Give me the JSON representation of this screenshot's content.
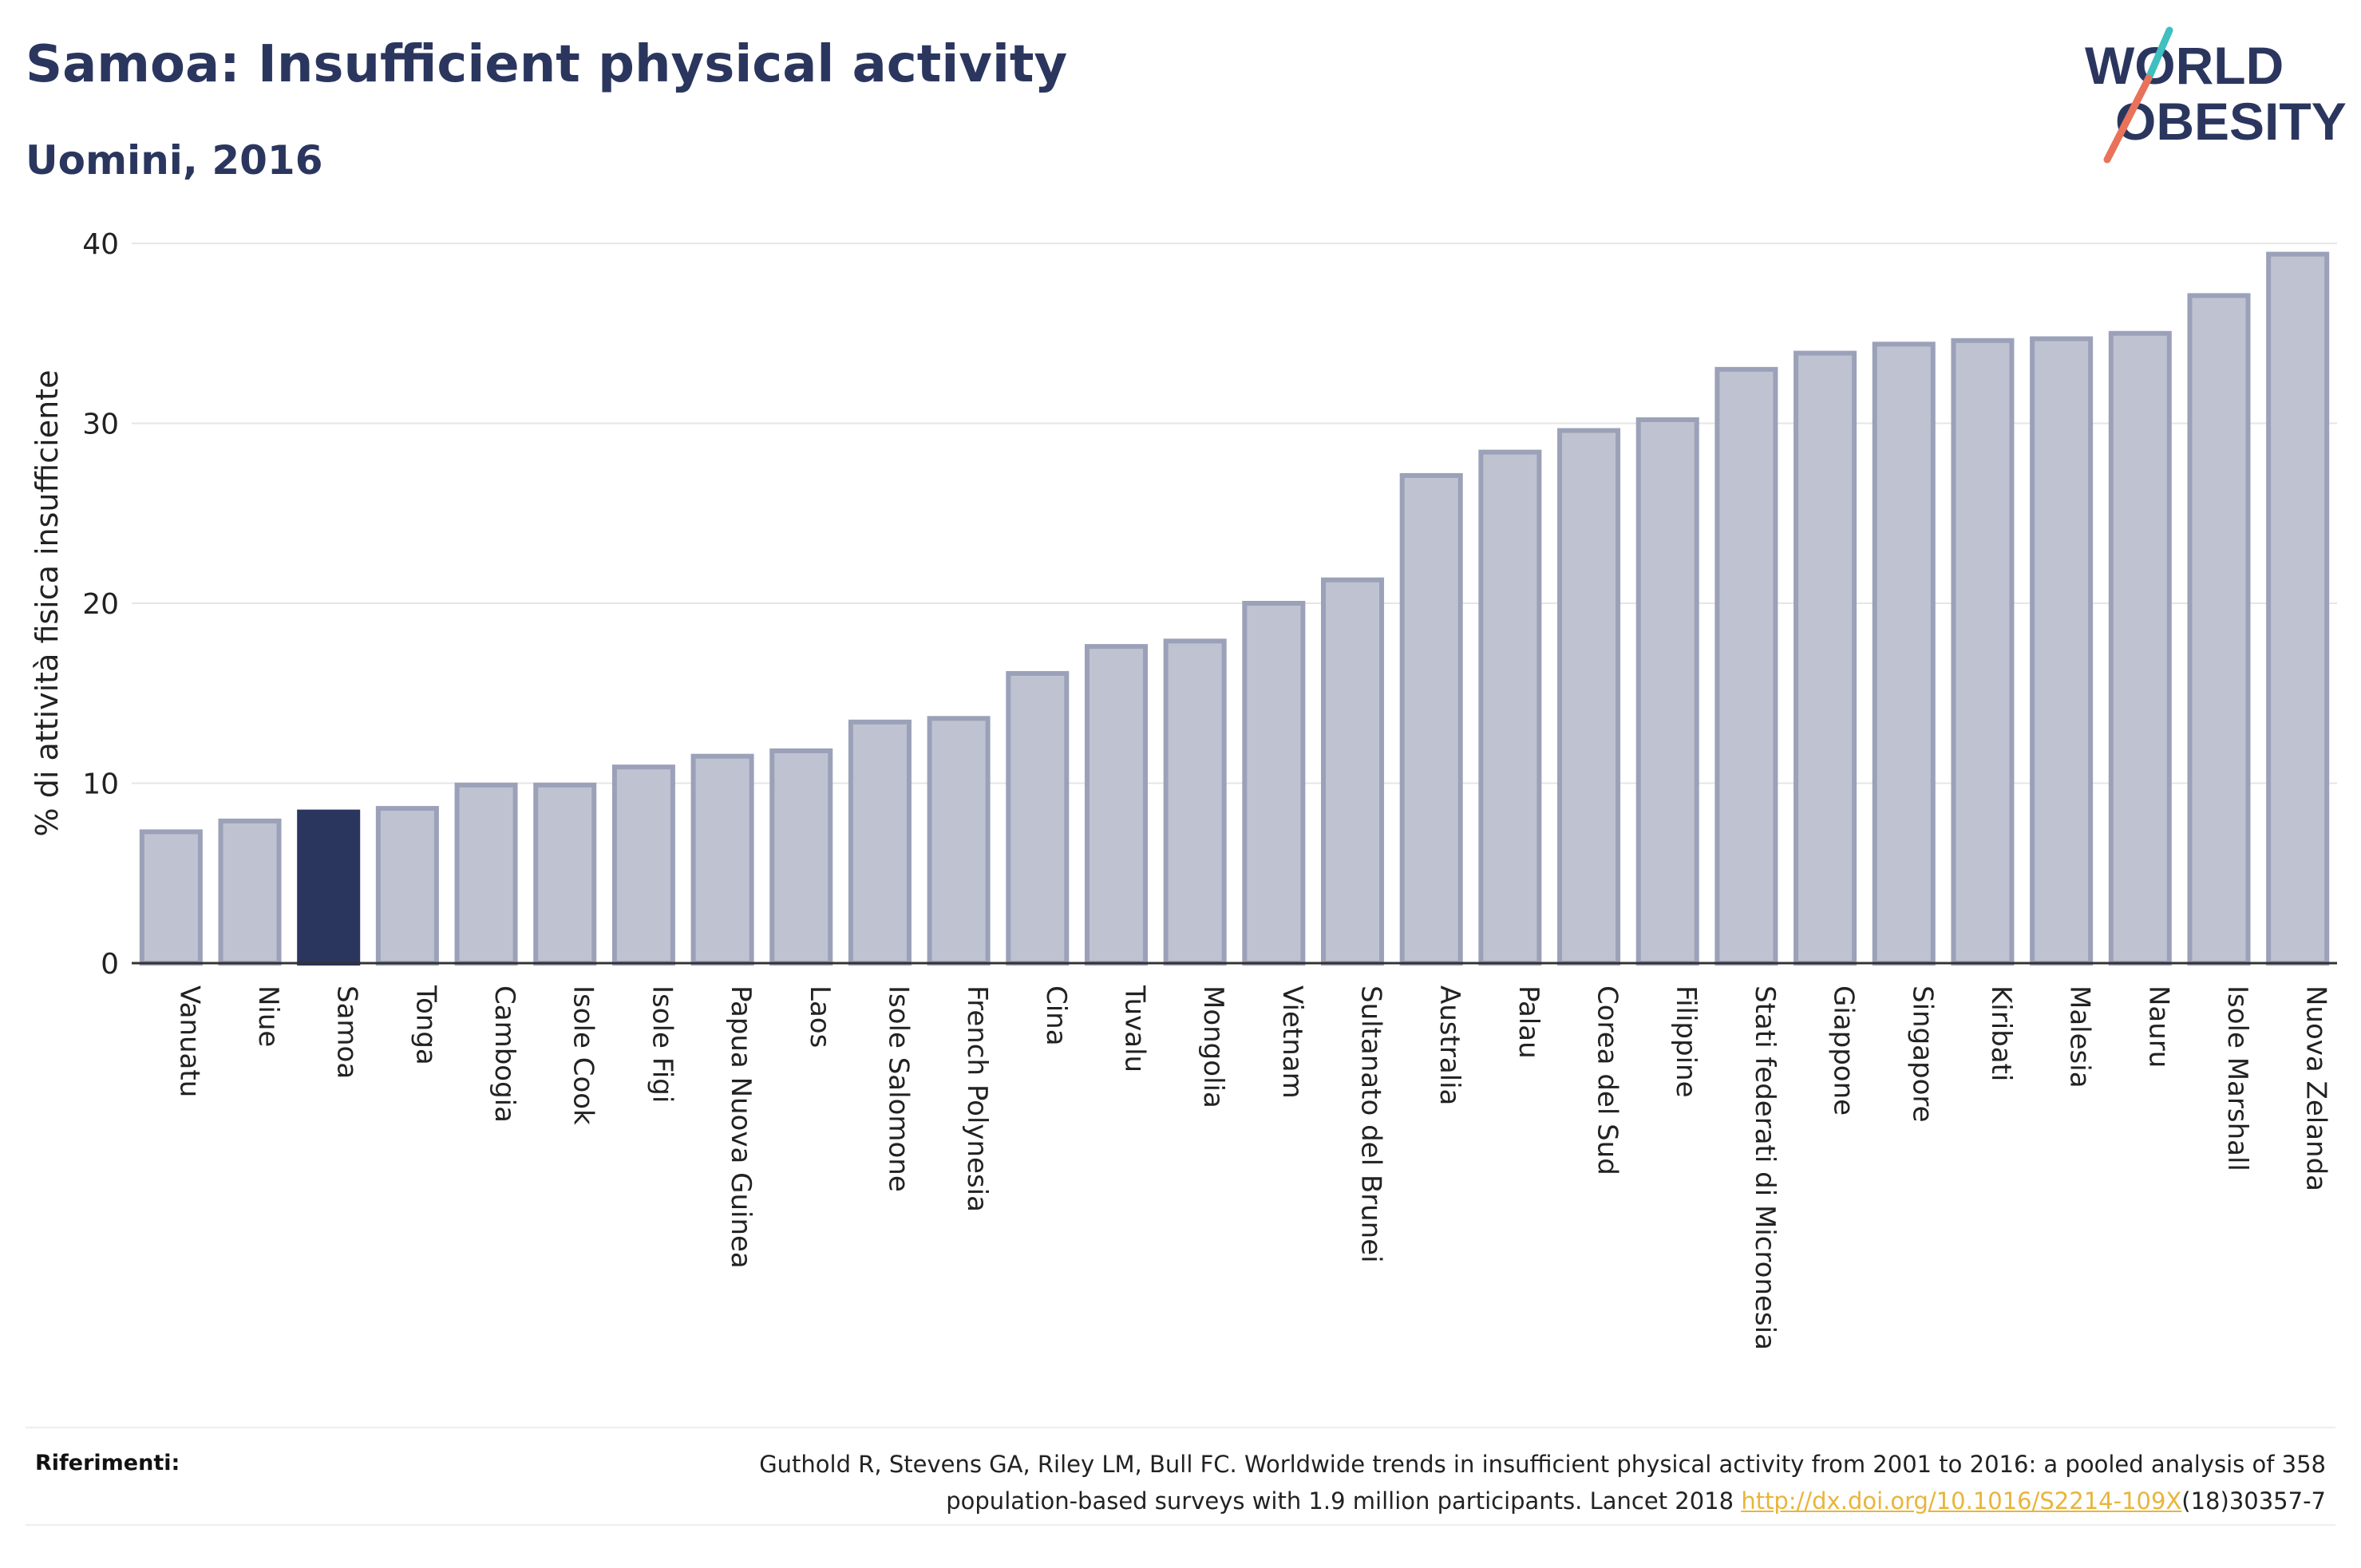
{
  "header": {
    "title": "Samoa: Insufficient physical activity",
    "subtitle": "Uomini, 2016"
  },
  "logo": {
    "line1": "WORLD",
    "line2": "OBESITY",
    "icon": "slash-logo-mark"
  },
  "colors": {
    "primary": "#2b365f",
    "bar_fill": "#bfc3d1",
    "bar_stroke": "#9ba1b8",
    "highlight": "#2b365f",
    "link": "#e8b53a",
    "logo_teal": "#3fbfbf",
    "logo_coral": "#e8735a"
  },
  "chart_data": {
    "type": "bar",
    "ylabel": "% di attività fisica insufficiente",
    "ylim": [
      0,
      40
    ],
    "yticks": [
      0,
      10,
      20,
      30,
      40
    ],
    "highlight": "Samoa",
    "categories": [
      "Vanuatu",
      "Niue",
      "Samoa",
      "Tonga",
      "Cambogia",
      "Isole Cook",
      "Isole Figi",
      "Papua Nuova Guinea",
      "Laos",
      "Isole Salomone",
      "French Polynesia",
      "Cina",
      "Tuvalu",
      "Mongolia",
      "Vietnam",
      "Sultanato del Brunei",
      "Australia",
      "Palau",
      "Corea del Sud",
      "Filippine",
      "Stati federati di Micronesia",
      "Giappone",
      "Singapore",
      "Kiribati",
      "Malesia",
      "Nauru",
      "Isole Marshall",
      "Nuova Zelanda"
    ],
    "values": [
      7.3,
      7.9,
      8.4,
      8.6,
      9.9,
      9.9,
      10.9,
      11.5,
      11.8,
      13.4,
      13.6,
      16.1,
      17.6,
      17.9,
      20.0,
      21.3,
      27.1,
      28.4,
      29.6,
      30.2,
      33.0,
      33.9,
      34.4,
      34.6,
      34.7,
      35.0,
      37.1,
      39.4
    ],
    "grid": true
  },
  "footer": {
    "label": "Riferimenti:",
    "line1": "Guthold R, Stevens GA, Riley LM, Bull FC. Worldwide trends in insufficient physical activity from 2001 to 2016: a pooled analysis of 358",
    "line2_pre": "population-based surveys with 1.9 million participants. Lancet 2018 ",
    "link_text": "http://dx.doi.org/10.1016/S2214-109X",
    "line2_post": "(18)30357-7"
  }
}
